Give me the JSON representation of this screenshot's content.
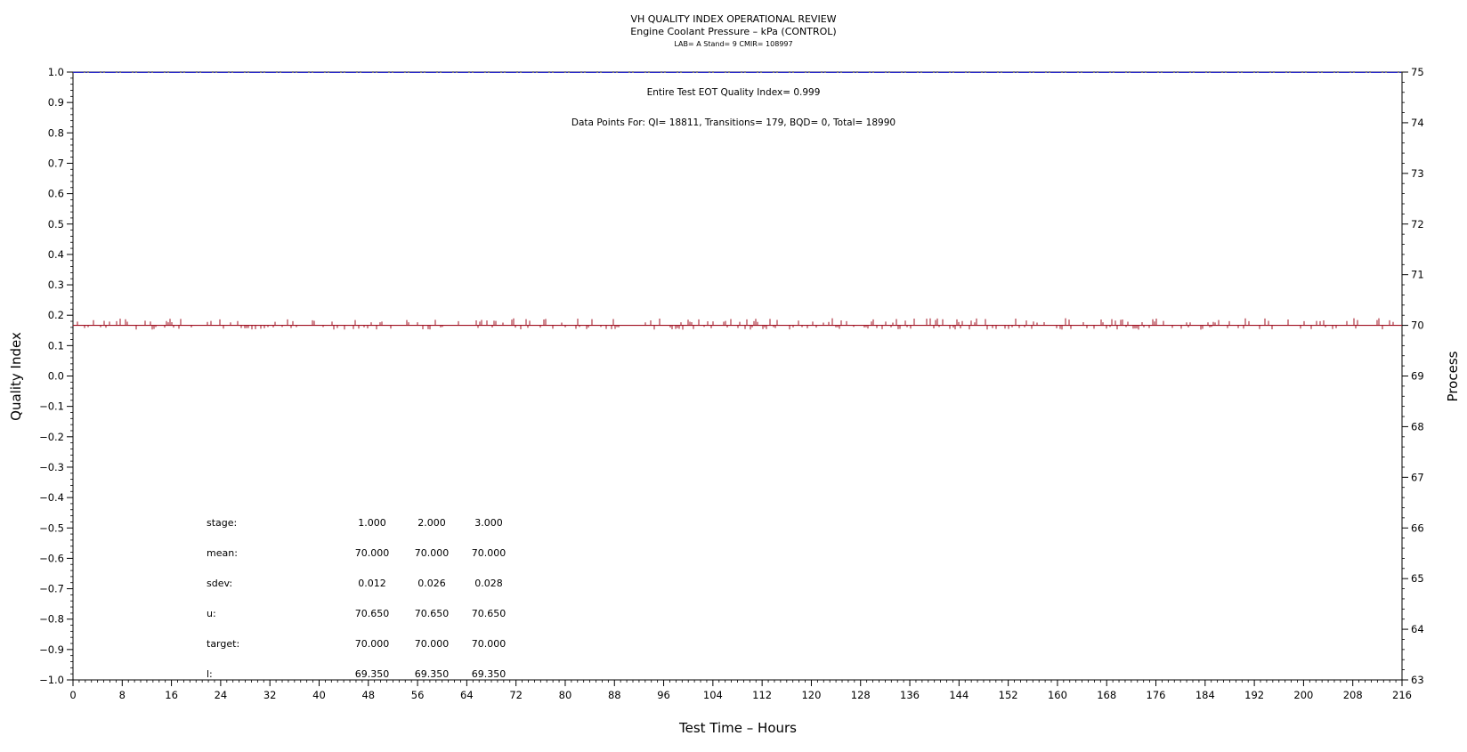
{
  "chart_data": {
    "type": "line",
    "title": "VH QUALITY INDEX OPERATIONAL REVIEW",
    "subtitle": "Engine Coolant Pressure – kPa (CONTROL)",
    "subtitle2": "LAB= A Stand= 9 CMIR= 108997",
    "xlabel": "Test Time – Hours",
    "ylabel_left": "Quality Index",
    "ylabel_right": "Process",
    "xlim": [
      0,
      216
    ],
    "x_ticks": [
      0,
      8,
      16,
      24,
      32,
      40,
      48,
      56,
      64,
      72,
      80,
      88,
      96,
      104,
      112,
      120,
      128,
      136,
      144,
      152,
      160,
      168,
      176,
      184,
      192,
      200,
      208,
      216
    ],
    "ylim_left": [
      -1.0,
      1.0
    ],
    "y_ticks_left": [
      "−1.0",
      "−0.9",
      "−0.8",
      "−0.7",
      "−0.6",
      "−0.5",
      "−0.4",
      "−0.3",
      "−0.2",
      "−0.1",
      "0.0",
      "0.1",
      "0.2",
      "0.3",
      "0.4",
      "0.5",
      "0.6",
      "0.7",
      "0.8",
      "0.9",
      "1.0"
    ],
    "ylim_right": [
      63,
      75
    ],
    "y_ticks_right": [
      63,
      64,
      65,
      66,
      67,
      68,
      69,
      70,
      71,
      72,
      73,
      74,
      75
    ],
    "series": [
      {
        "axis": "left",
        "style": "dash-dot",
        "color": "#2a2acc",
        "x": [
          0,
          216
        ],
        "y": [
          0.999,
          0.999
        ]
      },
      {
        "axis": "right",
        "style": "line",
        "color": "#a01020",
        "x": [
          0,
          216
        ],
        "y": [
          70.0,
          70.0
        ]
      }
    ],
    "annotations": {
      "eot_quality_index": "Entire Test EOT Quality Index=   0.999",
      "data_points": "Data Points For: QI= 18811, Transitions=    179, BQD=     0, Total= 18990"
    },
    "stats_table": [
      {
        "label": "stage:",
        "values": [
          "1.000",
          "2.000",
          "3.000"
        ]
      },
      {
        "label": "mean:",
        "values": [
          "70.000",
          "70.000",
          "70.000"
        ]
      },
      {
        "label": "sdev:",
        "values": [
          "0.012",
          "0.026",
          "0.028"
        ]
      },
      {
        "label": "u:",
        "values": [
          "70.650",
          "70.650",
          "70.650"
        ]
      },
      {
        "label": "target:",
        "values": [
          "70.000",
          "70.000",
          "70.000"
        ]
      },
      {
        "label": "l:",
        "values": [
          "69.350",
          "69.350",
          "69.350"
        ]
      }
    ],
    "grid": false
  }
}
